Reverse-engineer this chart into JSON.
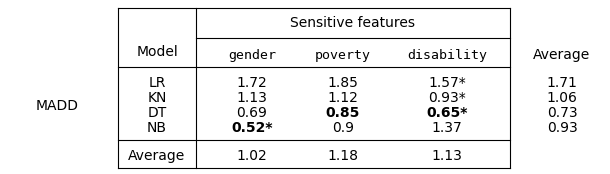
{
  "title": "Sensitive features",
  "metric_label": "MADD",
  "model_col_header": "Model",
  "avg_col_header": "Average",
  "sensitive_headers": [
    "gender",
    "poverty",
    "disability"
  ],
  "rows": [
    {
      "model": "LR",
      "gender": "1.72",
      "poverty": "1.85",
      "disability": "1.57*",
      "avg": "1.71",
      "bold_gender": false,
      "bold_poverty": false,
      "bold_disability": false
    },
    {
      "model": "KN",
      "gender": "1.13",
      "poverty": "1.12",
      "disability": "0.93*",
      "avg": "1.06",
      "bold_gender": false,
      "bold_poverty": false,
      "bold_disability": false
    },
    {
      "model": "DT",
      "gender": "0.69",
      "poverty": "0.85",
      "disability": "0.65*",
      "avg": "0.73",
      "bold_gender": false,
      "bold_poverty": true,
      "bold_disability": true
    },
    {
      "model": "NB",
      "gender": "0.52*",
      "poverty": "0.9",
      "disability": "1.37",
      "avg": "0.93",
      "bold_gender": true,
      "bold_poverty": false,
      "bold_disability": false
    }
  ],
  "avg_row": {
    "label": "Average",
    "gender": "1.02",
    "poverty": "1.18",
    "disability": "1.13"
  },
  "bg_color": "#ffffff",
  "text_color": "#000000",
  "line_color": "#000000",
  "font_size": 10.0,
  "mono_font_size": 9.5
}
